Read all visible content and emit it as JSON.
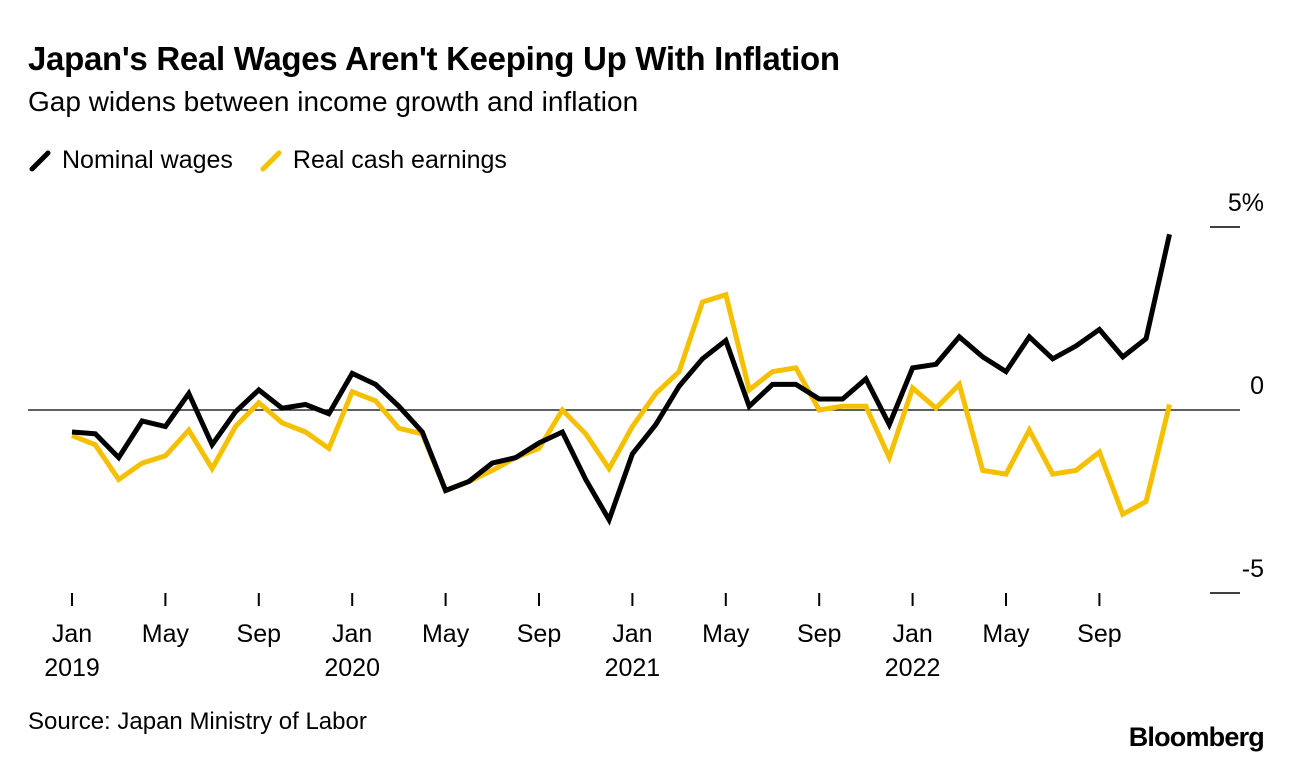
{
  "title": "Japan's Real Wages Aren't Keeping Up With Inflation",
  "subtitle": "Gap widens between income growth and inflation",
  "source": "Source: Japan Ministry of Labor",
  "brand": "Bloomberg",
  "colors": {
    "nominal": "#000000",
    "real": "#f5c000",
    "zero_line": "#000000"
  },
  "chart_data": {
    "type": "line",
    "title": "Japan's Real Wages Aren't Keeping Up With Inflation",
    "xlabel": "",
    "ylabel": "",
    "ylim": [
      -5,
      5
    ],
    "y_ticks": [
      {
        "value": 5,
        "label": "5%"
      },
      {
        "value": 0,
        "label": "0"
      },
      {
        "value": -5,
        "label": "-5"
      }
    ],
    "x_ticks": [
      {
        "index": 0,
        "label": "Jan",
        "year": "2019"
      },
      {
        "index": 4,
        "label": "May",
        "year": ""
      },
      {
        "index": 8,
        "label": "Sep",
        "year": ""
      },
      {
        "index": 12,
        "label": "Jan",
        "year": "2020"
      },
      {
        "index": 16,
        "label": "May",
        "year": ""
      },
      {
        "index": 20,
        "label": "Sep",
        "year": ""
      },
      {
        "index": 24,
        "label": "Jan",
        "year": "2021"
      },
      {
        "index": 28,
        "label": "May",
        "year": ""
      },
      {
        "index": 32,
        "label": "Sep",
        "year": ""
      },
      {
        "index": 36,
        "label": "Jan",
        "year": "2022"
      },
      {
        "index": 40,
        "label": "May",
        "year": ""
      },
      {
        "index": 44,
        "label": "Sep",
        "year": ""
      }
    ],
    "legend_position": "top-left",
    "series": [
      {
        "name": "Nominal wages",
        "color": "#000000",
        "values": [
          -0.6,
          -0.65,
          -1.3,
          -0.3,
          -0.45,
          0.45,
          -0.95,
          -0.05,
          0.55,
          0.05,
          0.15,
          -0.1,
          1.0,
          0.7,
          0.1,
          -0.6,
          -2.2,
          -1.95,
          -1.45,
          -1.3,
          -0.9,
          -0.6,
          -1.9,
          -3.0,
          -1.2,
          -0.4,
          0.65,
          1.4,
          1.9,
          0.1,
          0.7,
          0.7,
          0.3,
          0.3,
          0.85,
          -0.4,
          1.15,
          1.25,
          2.0,
          1.45,
          1.05,
          2.0,
          1.4,
          1.75,
          2.2,
          1.45,
          1.95,
          4.8
        ]
      },
      {
        "name": "Real cash earnings",
        "color": "#f5c000",
        "values": [
          -0.7,
          -0.95,
          -1.9,
          -1.45,
          -1.25,
          -0.55,
          -1.6,
          -0.45,
          0.2,
          -0.35,
          -0.6,
          -1.05,
          0.5,
          0.25,
          -0.5,
          -0.65,
          -2.2,
          -1.95,
          -1.65,
          -1.3,
          -1.05,
          0.0,
          -0.65,
          -1.6,
          -0.45,
          0.45,
          1.05,
          2.95,
          3.15,
          0.55,
          1.05,
          1.15,
          0.0,
          0.1,
          0.1,
          -1.3,
          0.6,
          0.05,
          0.7,
          -1.65,
          -1.75,
          -0.55,
          -1.75,
          -1.65,
          -1.15,
          -2.85,
          -2.5,
          0.15
        ]
      }
    ]
  }
}
